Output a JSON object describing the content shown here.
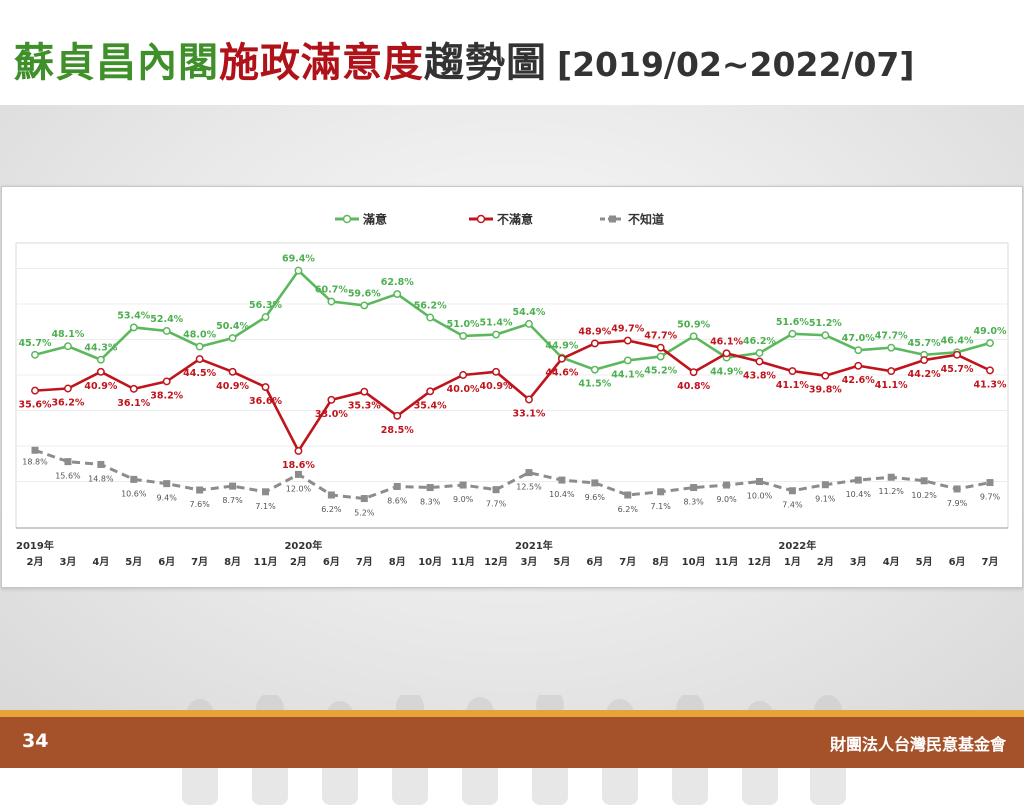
{
  "slide": {
    "title_part1": "蘇貞昌內閣",
    "title_part2": "施政滿意度",
    "title_part3": "趨勢圖",
    "title_range": "[2019/02~2022/07]",
    "page_number": "34",
    "organization": "財團法人台灣民意基金會"
  },
  "colors": {
    "satisfied": "#5cb85c",
    "dissatisfied": "#c0141c",
    "unknown": "#8c8c8c",
    "title_green": "#3f8f2a",
    "title_red": "#b0121a",
    "footer": "#a5522a",
    "footer_stripe": "#e8a23a"
  },
  "chart_data": {
    "type": "line",
    "title": "",
    "xlabel": "",
    "ylabel": "",
    "legend_position": "top-center",
    "grid": "horizontal",
    "years": [
      {
        "label": "2019年",
        "index": 0
      },
      {
        "label": "2020年",
        "index": 8
      },
      {
        "label": "2021年",
        "index": 15
      },
      {
        "label": "2022年",
        "index": 23
      }
    ],
    "categories": [
      "2月",
      "3月",
      "4月",
      "5月",
      "6月",
      "7月",
      "8月",
      "11月",
      "2月",
      "6月",
      "7月",
      "8月",
      "10月",
      "11月",
      "12月",
      "3月",
      "5月",
      "6月",
      "7月",
      "8月",
      "10月",
      "11月",
      "12月",
      "1月",
      "2月",
      "3月",
      "4月",
      "5月",
      "6月",
      "7月"
    ],
    "series": [
      {
        "name": "滿意",
        "color": "#5cb85c",
        "values": [
          45.7,
          48.1,
          44.3,
          53.4,
          52.4,
          48.0,
          50.4,
          56.3,
          69.4,
          60.7,
          59.6,
          62.8,
          56.2,
          51.0,
          51.4,
          54.4,
          44.9,
          41.5,
          44.1,
          45.2,
          50.9,
          44.9,
          46.2,
          51.6,
          51.2,
          47.0,
          47.7,
          45.7,
          46.4,
          49.0
        ]
      },
      {
        "name": "不滿意",
        "color": "#c0141c",
        "values": [
          35.6,
          36.2,
          40.9,
          36.1,
          38.2,
          44.5,
          40.9,
          36.6,
          18.6,
          33.0,
          35.3,
          28.5,
          35.4,
          40.0,
          40.9,
          33.1,
          44.6,
          48.9,
          49.7,
          47.7,
          40.8,
          46.1,
          43.8,
          41.1,
          39.8,
          42.6,
          41.1,
          44.2,
          45.7,
          41.3
        ]
      },
      {
        "name": "不知道",
        "color": "#8c8c8c",
        "values": [
          18.8,
          15.6,
          14.8,
          10.6,
          9.4,
          7.6,
          8.7,
          7.1,
          12.0,
          6.2,
          5.2,
          8.6,
          8.3,
          9.0,
          7.7,
          12.5,
          10.4,
          9.6,
          6.2,
          7.1,
          8.3,
          9.0,
          10.0,
          7.4,
          9.1,
          10.4,
          11.2,
          10.2,
          7.9,
          9.7
        ]
      }
    ]
  }
}
